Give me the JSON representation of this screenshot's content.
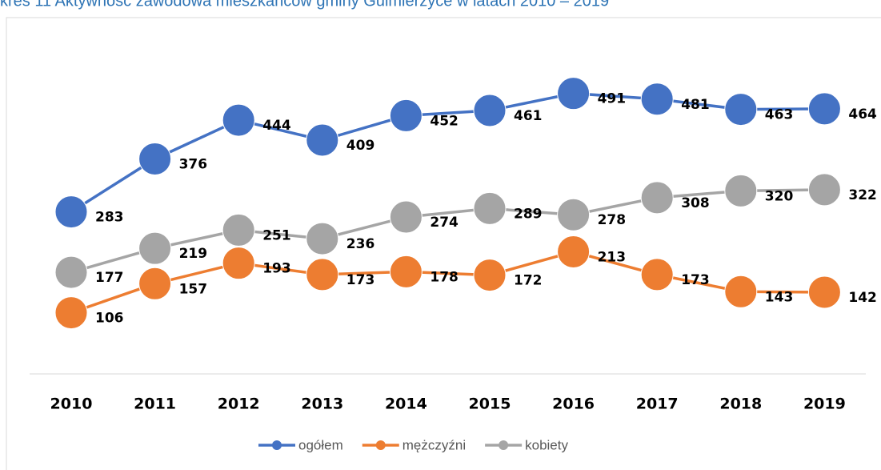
{
  "chart_data": {
    "type": "line",
    "title": "kres 11 Aktywność zawodowa mieszkańców gminy Gulmierzyce w latach 2010 – 2019",
    "categories": [
      "2010",
      "2011",
      "2012",
      "2013",
      "2014",
      "2015",
      "2016",
      "2017",
      "2018",
      "2019"
    ],
    "series": [
      {
        "name": "ogółem",
        "color": "#4472c4",
        "values": [
          283,
          376,
          444,
          409,
          452,
          461,
          491,
          481,
          463,
          464
        ]
      },
      {
        "name": "mężczyźni",
        "color": "#ed7d31",
        "values": [
          106,
          157,
          193,
          173,
          178,
          172,
          213,
          173,
          143,
          142
        ]
      },
      {
        "name": "kobiety",
        "color": "#a5a5a5",
        "values": [
          177,
          219,
          251,
          236,
          274,
          289,
          278,
          308,
          320,
          322
        ]
      }
    ],
    "legend": "bottom"
  }
}
